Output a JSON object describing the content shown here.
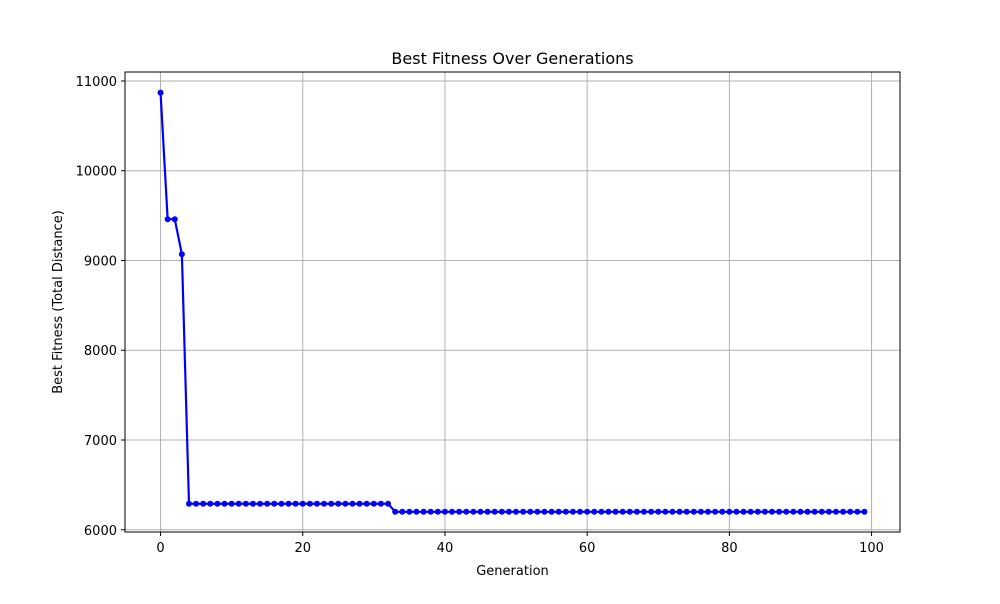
{
  "chart_data": {
    "type": "line",
    "title": "Best Fitness Over Generations",
    "xlabel": "Generation",
    "ylabel": "Best Fitness (Total Distance)",
    "xlim": [
      -5,
      104
    ],
    "ylim": [
      5975,
      11100
    ],
    "x_ticks": [
      0,
      20,
      40,
      60,
      80,
      100
    ],
    "y_ticks": [
      6000,
      7000,
      8000,
      9000,
      10000,
      11000
    ],
    "x_tick_labels": [
      "0",
      "20",
      "40",
      "60",
      "80",
      "100"
    ],
    "y_tick_labels": [
      "6000",
      "7000",
      "8000",
      "9000",
      "10000",
      "11000"
    ],
    "grid": true,
    "legend": "none",
    "colors": {
      "line": "#0000ff",
      "marker": "#0000ff",
      "grid": "#b0b0b0",
      "axes": "#000000"
    },
    "series": [
      {
        "x": [
          0,
          1,
          2,
          3,
          4,
          5,
          6,
          7,
          8,
          9,
          10,
          11,
          12,
          13,
          14,
          15,
          16,
          17,
          18,
          19,
          20,
          21,
          22,
          23,
          24,
          25,
          26,
          27,
          28,
          29,
          30,
          31,
          32,
          33,
          34,
          35,
          36,
          37,
          38,
          39,
          40,
          41,
          42,
          43,
          44,
          45,
          46,
          47,
          48,
          49,
          50,
          51,
          52,
          53,
          54,
          55,
          56,
          57,
          58,
          59,
          60,
          61,
          62,
          63,
          64,
          65,
          66,
          67,
          68,
          69,
          70,
          71,
          72,
          73,
          74,
          75,
          76,
          77,
          78,
          79,
          80,
          81,
          82,
          83,
          84,
          85,
          86,
          87,
          88,
          89,
          90,
          91,
          92,
          93,
          94,
          95,
          96,
          97,
          98,
          99
        ],
        "values": [
          10870,
          9460,
          9460,
          9070,
          6290,
          6290,
          6290,
          6290,
          6290,
          6290,
          6290,
          6290,
          6290,
          6290,
          6290,
          6290,
          6290,
          6290,
          6290,
          6290,
          6290,
          6290,
          6290,
          6290,
          6290,
          6290,
          6290,
          6290,
          6290,
          6290,
          6290,
          6290,
          6290,
          6200,
          6200,
          6200,
          6200,
          6200,
          6200,
          6200,
          6200,
          6200,
          6200,
          6200,
          6200,
          6200,
          6200,
          6200,
          6200,
          6200,
          6200,
          6200,
          6200,
          6200,
          6200,
          6200,
          6200,
          6200,
          6200,
          6200,
          6200,
          6200,
          6200,
          6200,
          6200,
          6200,
          6200,
          6200,
          6200,
          6200,
          6200,
          6200,
          6200,
          6200,
          6200,
          6200,
          6200,
          6200,
          6200,
          6200,
          6200,
          6200,
          6200,
          6200,
          6200,
          6200,
          6200,
          6200,
          6200,
          6200,
          6200,
          6200,
          6200,
          6200,
          6200,
          6200,
          6200,
          6200,
          6200,
          6200
        ]
      }
    ]
  }
}
